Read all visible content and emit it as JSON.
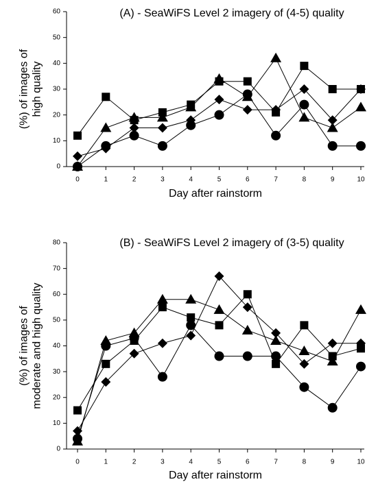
{
  "chart_data": [
    {
      "type": "line",
      "title": "(A) - SeaWiFS Level 2 imagery of (4-5) quality",
      "xlabel": "Day after rainstorm",
      "ylabel": [
        "(%) of images of",
        "high quality"
      ],
      "x": [
        0,
        1,
        2,
        3,
        4,
        5,
        6,
        7,
        8,
        9,
        10
      ],
      "xlim": [
        0,
        10
      ],
      "xticks": [
        0,
        1,
        2,
        3,
        4,
        5,
        6,
        7,
        8,
        9,
        10
      ],
      "ylim": [
        0,
        60
      ],
      "yticks": [
        0,
        10,
        20,
        30,
        40,
        50,
        60
      ],
      "color": "#000000",
      "series": [
        {
          "marker": "square",
          "values": [
            12,
            27,
            18,
            21,
            24,
            33,
            33,
            21,
            39,
            30,
            30
          ]
        },
        {
          "marker": "triangle",
          "values": [
            0,
            15,
            19,
            19,
            23,
            34,
            27,
            42,
            19,
            15,
            23
          ]
        },
        {
          "marker": "diamond",
          "values": [
            4,
            7,
            15,
            15,
            18,
            26,
            22,
            22,
            30,
            18,
            30
          ]
        },
        {
          "marker": "circle",
          "values": [
            0,
            8,
            12,
            8,
            16,
            20,
            28,
            12,
            24,
            8,
            8
          ]
        }
      ]
    },
    {
      "type": "line",
      "title": "(B) - SeaWiFS Level 2 imagery of (3-5) quality",
      "xlabel": "Day after rainstorm",
      "ylabel": [
        "(%) of images of",
        "moderate and high quality"
      ],
      "x": [
        0,
        1,
        2,
        3,
        4,
        5,
        6,
        7,
        8,
        9,
        10
      ],
      "xlim": [
        0,
        10
      ],
      "xticks": [
        0,
        1,
        2,
        3,
        4,
        5,
        6,
        7,
        8,
        9,
        10
      ],
      "ylim": [
        0,
        80
      ],
      "yticks": [
        0,
        10,
        20,
        30,
        40,
        50,
        60,
        70,
        80
      ],
      "color": "#000000",
      "series": [
        {
          "marker": "square",
          "values": [
            15,
            33,
            42,
            55,
            51,
            48,
            60,
            33,
            48,
            36,
            39
          ]
        },
        {
          "marker": "triangle",
          "values": [
            3,
            42,
            45,
            58,
            58,
            54,
            46,
            42,
            38,
            34,
            54
          ]
        },
        {
          "marker": "diamond",
          "values": [
            7,
            26,
            37,
            41,
            44,
            67,
            55,
            45,
            33,
            41,
            41
          ]
        },
        {
          "marker": "circle",
          "values": [
            4,
            40,
            43,
            28,
            48,
            36,
            36,
            36,
            24,
            16,
            32
          ]
        }
      ]
    }
  ]
}
